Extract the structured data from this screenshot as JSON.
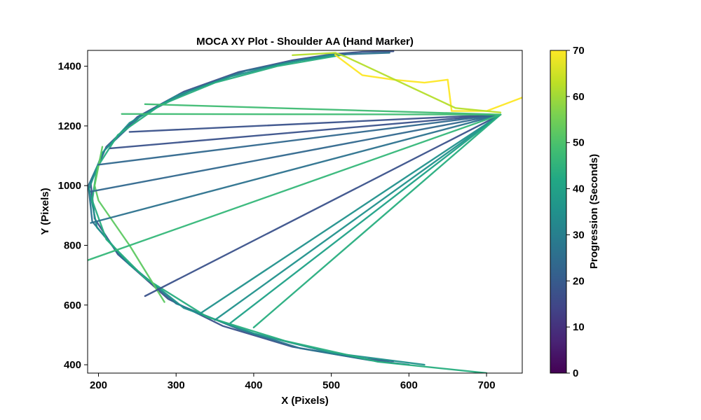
{
  "chart_data": {
    "type": "line",
    "title": "MOCA XY Plot - Shoulder AA (Hand Marker)",
    "xlabel": "X (Pixels)",
    "ylabel": "Y (Pixels)",
    "xlim": [
      186,
      746
    ],
    "ylim": [
      372,
      1453
    ],
    "x_ticks": [
      200,
      300,
      400,
      500,
      600,
      700
    ],
    "y_ticks": [
      400,
      600,
      800,
      1000,
      1200,
      1400
    ],
    "x_tick_labels": [
      "200",
      "300",
      "400",
      "500",
      "600",
      "700"
    ],
    "y_tick_labels": [
      "400",
      "600",
      "800",
      "1000",
      "1200",
      "1400"
    ],
    "grid": false,
    "colorbar": {
      "label": "Progression (Seconds)",
      "range": [
        0,
        70
      ],
      "ticks": [
        0,
        10,
        20,
        30,
        40,
        50,
        60,
        70
      ],
      "tick_labels": [
        "0",
        "10",
        "20",
        "30",
        "40",
        "50",
        "60",
        "70"
      ],
      "colormap": "viridis"
    },
    "series": [
      {
        "color": "#3b528b",
        "points": [
          [
            580,
            1450
          ],
          [
            540,
            1448
          ],
          [
            500,
            1440
          ],
          [
            450,
            1420
          ],
          [
            380,
            1380
          ],
          [
            310,
            1315
          ],
          [
            250,
            1230
          ],
          [
            210,
            1130
          ],
          [
            190,
            1010
          ],
          [
            195,
            890
          ],
          [
            225,
            770
          ],
          [
            290,
            620
          ],
          [
            360,
            530
          ],
          [
            450,
            460
          ],
          [
            540,
            420
          ],
          [
            580,
            412
          ]
        ]
      },
      {
        "color": "#2c728e",
        "points": [
          [
            575,
            1445
          ],
          [
            520,
            1440
          ],
          [
            460,
            1420
          ],
          [
            390,
            1385
          ],
          [
            320,
            1320
          ],
          [
            255,
            1235
          ],
          [
            208,
            1120
          ],
          [
            187,
            1000
          ],
          [
            192,
            880
          ],
          [
            230,
            760
          ],
          [
            300,
            605
          ],
          [
            380,
            520
          ],
          [
            460,
            455
          ],
          [
            550,
            415
          ],
          [
            600,
            400
          ]
        ]
      },
      {
        "color": "#21918c",
        "points": [
          [
            505,
            1440
          ],
          [
            440,
            1410
          ],
          [
            370,
            1365
          ],
          [
            300,
            1300
          ],
          [
            240,
            1210
          ],
          [
            205,
            1110
          ],
          [
            188,
            990
          ],
          [
            198,
            860
          ],
          [
            240,
            735
          ],
          [
            310,
            590
          ],
          [
            400,
            505
          ],
          [
            500,
            440
          ],
          [
            620,
            400
          ]
        ]
      },
      {
        "color": "#28ae80",
        "points": [
          [
            510,
            1436
          ],
          [
            430,
            1400
          ],
          [
            350,
            1345
          ],
          [
            280,
            1270
          ],
          [
            225,
            1170
          ],
          [
            198,
            1060
          ],
          [
            192,
            950
          ],
          [
            210,
            820
          ],
          [
            260,
            690
          ],
          [
            340,
            560
          ],
          [
            440,
            480
          ],
          [
            560,
            410
          ],
          [
            700,
            372
          ]
        ]
      },
      {
        "color": "#5ec962",
        "points": [
          [
            205,
            1130
          ],
          [
            195,
            1000
          ],
          [
            200,
            950
          ],
          [
            240,
            800
          ],
          [
            285,
            610
          ]
        ]
      },
      {
        "color": "#fde725",
        "points": [
          [
            505,
            1438
          ],
          [
            540,
            1370
          ],
          [
            580,
            1355
          ],
          [
            620,
            1345
          ],
          [
            650,
            1355
          ],
          [
            655,
            1250
          ],
          [
            700,
            1250
          ],
          [
            746,
            1295
          ]
        ]
      },
      {
        "color": "#b5de2b",
        "points": [
          [
            450,
            1437
          ],
          [
            505,
            1445
          ],
          [
            520,
            1430
          ],
          [
            660,
            1260
          ],
          [
            718,
            1245
          ]
        ]
      },
      {
        "color": "#3b528b",
        "points": [
          [
            718,
            1238
          ],
          [
            215,
            1125
          ]
        ]
      },
      {
        "color": "#3b528b",
        "points": [
          [
            718,
            1238
          ],
          [
            240,
            1180
          ]
        ]
      },
      {
        "color": "#31688e",
        "points": [
          [
            718,
            1238
          ],
          [
            200,
            1070
          ]
        ]
      },
      {
        "color": "#31688e",
        "points": [
          [
            718,
            1238
          ],
          [
            190,
            980
          ]
        ]
      },
      {
        "color": "#2c728e",
        "points": [
          [
            718,
            1238
          ],
          [
            190,
            875
          ]
        ]
      },
      {
        "color": "#3b528b",
        "points": [
          [
            718,
            1238
          ],
          [
            260,
            630
          ]
        ]
      },
      {
        "color": "#21918c",
        "points": [
          [
            718,
            1238
          ],
          [
            330,
            570
          ]
        ]
      },
      {
        "color": "#21918c",
        "points": [
          [
            718,
            1238
          ],
          [
            350,
            550
          ]
        ]
      },
      {
        "color": "#1fa187",
        "points": [
          [
            718,
            1238
          ],
          [
            370,
            540
          ]
        ]
      },
      {
        "color": "#28ae80",
        "points": [
          [
            718,
            1238
          ],
          [
            400,
            525
          ]
        ]
      },
      {
        "color": "#3fbc73",
        "points": [
          [
            718,
            1238
          ],
          [
            260,
            1273
          ]
        ]
      },
      {
        "color": "#3fbc73",
        "points": [
          [
            718,
            1238
          ],
          [
            230,
            1240
          ]
        ]
      },
      {
        "color": "#35b779",
        "points": [
          [
            718,
            1238
          ],
          [
            175,
            740
          ]
        ]
      }
    ]
  }
}
